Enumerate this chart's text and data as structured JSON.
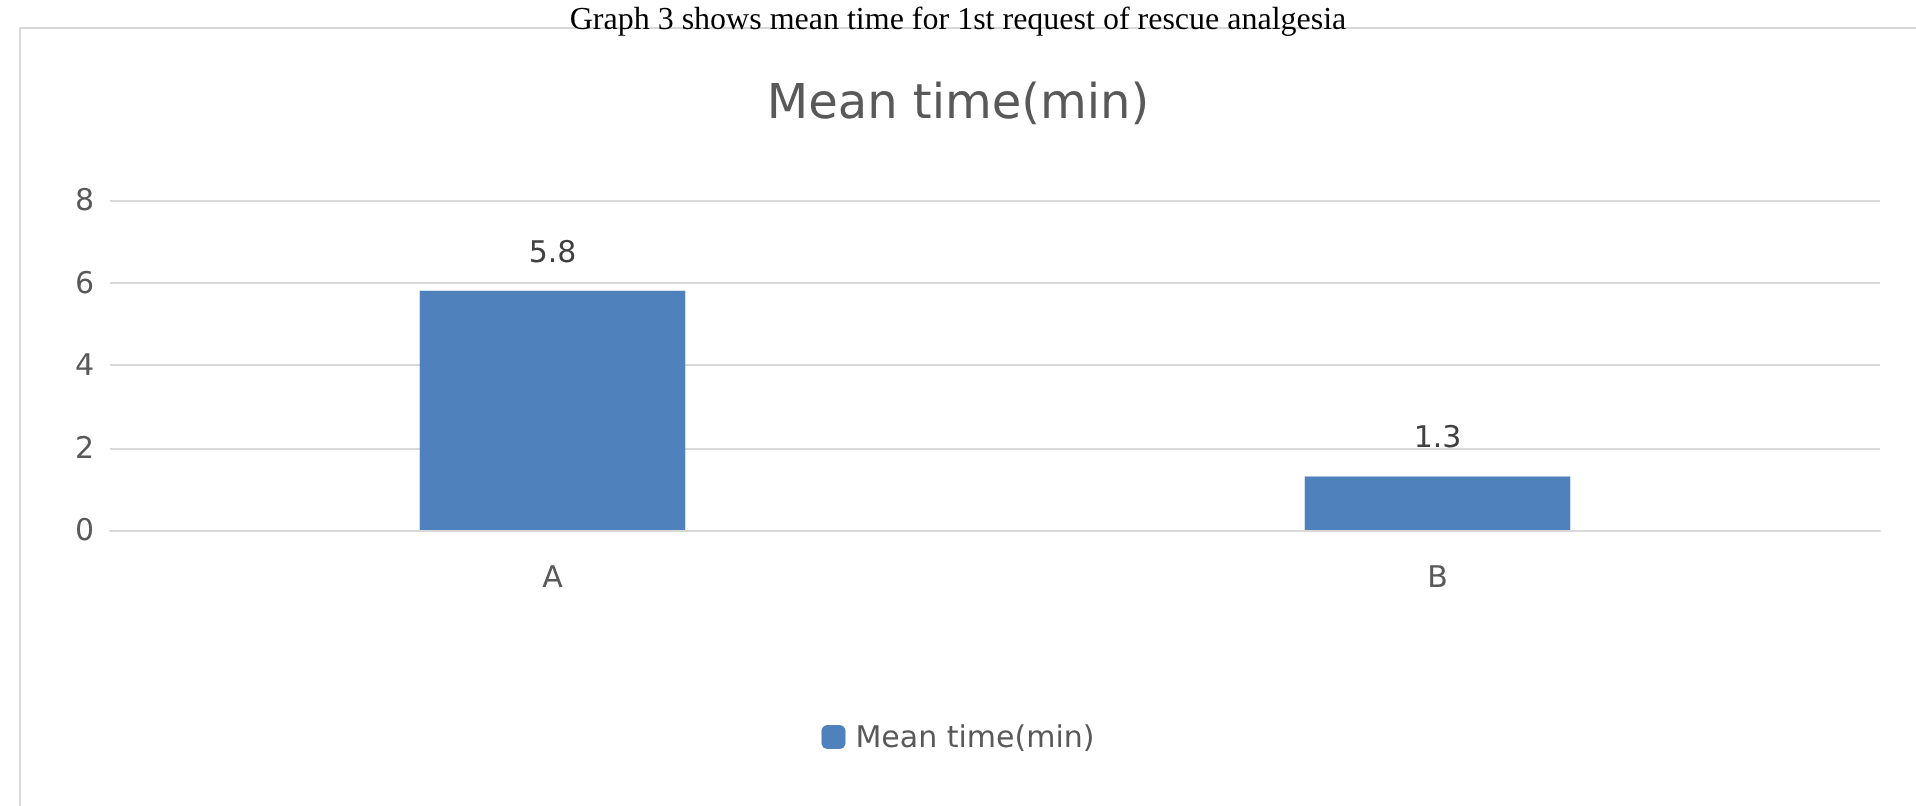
{
  "chart_data": {
    "type": "bar",
    "title": "Mean time(min)",
    "annotations": [
      "Graph 3 shows mean time for 1st request of rescue analgesia"
    ],
    "categories": [
      "A",
      "B"
    ],
    "series": [
      {
        "name": "Mean time(min)",
        "color": "#4f81bd",
        "values": [
          5.8,
          1.3
        ]
      }
    ],
    "ylim": [
      0,
      8
    ],
    "yticks": [
      0,
      2,
      4,
      6,
      8
    ],
    "grid": "y",
    "legend": "bottom",
    "data_labels": true
  }
}
